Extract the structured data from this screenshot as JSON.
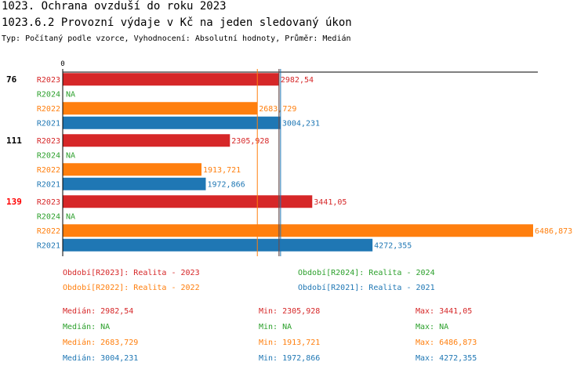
{
  "header": {
    "title": "1023. Ochrana ovzduší do roku 2023",
    "subtitle": "1023.6.2 Provozní výdaje v Kč na jeden sledovaný úkon",
    "meta": "Typ: Počítaný podle vzorce, Vyhodnocení: Absolutní hodnoty, Průměr: Medián"
  },
  "colors": {
    "R2023": "#d62728",
    "R2024": "#2ca02c",
    "R2022": "#ff7f0e",
    "R2021": "#1f77b4",
    "highlight_group": "#ff0000",
    "default_group": "#000000"
  },
  "chart_data": {
    "type": "bar",
    "orientation": "horizontal",
    "axis_zero_label": "0",
    "xlim": [
      0,
      6486.873
    ],
    "series_order": [
      "R2023",
      "R2024",
      "R2022",
      "R2021"
    ],
    "groups": [
      {
        "label": "76",
        "highlight": false,
        "bars": [
          {
            "series": "R2023",
            "value": 2982.54,
            "text": "2982,54"
          },
          {
            "series": "R2024",
            "value": null,
            "text": "NA"
          },
          {
            "series": "R2022",
            "value": 2683.729,
            "text": "2683,729"
          },
          {
            "series": "R2021",
            "value": 3004.231,
            "text": "3004,231"
          }
        ]
      },
      {
        "label": "111",
        "highlight": false,
        "bars": [
          {
            "series": "R2023",
            "value": 2305.928,
            "text": "2305,928"
          },
          {
            "series": "R2024",
            "value": null,
            "text": "NA"
          },
          {
            "series": "R2022",
            "value": 1913.721,
            "text": "1913,721"
          },
          {
            "series": "R2021",
            "value": 1972.866,
            "text": "1972,866"
          }
        ]
      },
      {
        "label": "139",
        "highlight": true,
        "bars": [
          {
            "series": "R2023",
            "value": 3441.05,
            "text": "3441,05"
          },
          {
            "series": "R2024",
            "value": null,
            "text": "NA"
          },
          {
            "series": "R2022",
            "value": 6486.873,
            "text": "6486,873"
          },
          {
            "series": "R2021",
            "value": 4272.355,
            "text": "4272,355"
          }
        ]
      }
    ],
    "median_lines": [
      {
        "series": "R2023",
        "value": 2982.54
      },
      {
        "series": "R2022",
        "value": 2683.729
      },
      {
        "series": "R2021",
        "value": 3004.231
      }
    ]
  },
  "legend": {
    "items": [
      {
        "series": "R2023",
        "text": "Období[R2023]: Realita - 2023"
      },
      {
        "series": "R2024",
        "text": "Období[R2024]: Realita - 2024"
      },
      {
        "series": "R2022",
        "text": "Období[R2022]: Realita - 2022"
      },
      {
        "series": "R2021",
        "text": "Období[R2021]: Realita - 2021"
      }
    ]
  },
  "stats": {
    "rows": [
      {
        "series": "R2023",
        "median": "Medián: 2982,54",
        "min": "Min: 2305,928",
        "max": "Max: 3441,05"
      },
      {
        "series": "R2024",
        "median": "Medián: NA",
        "min": "Min: NA",
        "max": "Max: NA"
      },
      {
        "series": "R2022",
        "median": "Medián: 2683,729",
        "min": "Min: 1913,721",
        "max": "Max: 6486,873"
      },
      {
        "series": "R2021",
        "median": "Medián: 3004,231",
        "min": "Min: 1972,866",
        "max": "Max: 4272,355"
      }
    ]
  }
}
